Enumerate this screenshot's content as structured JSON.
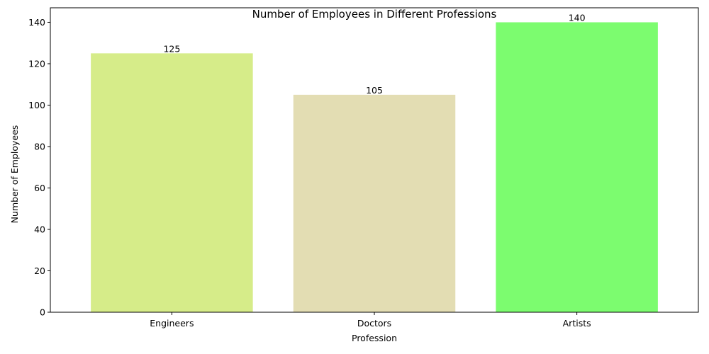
{
  "chart_data": {
    "type": "bar",
    "title": "Number of Employees in Different Professions",
    "xlabel": "Profession",
    "ylabel": "Number of Employees",
    "categories": [
      "Engineers",
      "Doctors",
      "Artists"
    ],
    "values": [
      125,
      105,
      140
    ],
    "value_labels": [
      "125",
      "105",
      "140"
    ],
    "colors": [
      "#d6ec89",
      "#e3ddb3",
      "#7cfc6f"
    ],
    "ylim": [
      0,
      147
    ],
    "yticks": [
      0,
      20,
      40,
      60,
      80,
      100,
      120,
      140
    ],
    "ytick_labels": [
      "0",
      "20",
      "40",
      "60",
      "80",
      "100",
      "120",
      "140"
    ],
    "grid": false,
    "legend": "none"
  }
}
